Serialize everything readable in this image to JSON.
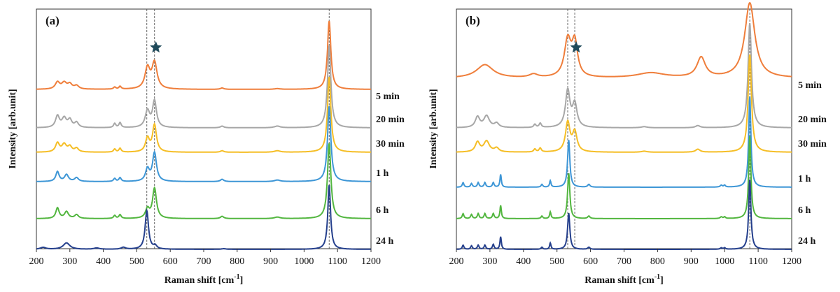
{
  "chart_data": [
    {
      "type": "line",
      "panel_label": "(a)",
      "xlabel_main": "Raman shift [cm",
      "xlabel_sup": "-1",
      "xlabel_end": "]",
      "ylabel": "Intensity [arb.unit]",
      "xlim": [
        200,
        1200
      ],
      "xticks": [
        200,
        300,
        400,
        500,
        600,
        700,
        800,
        900,
        1000,
        1100,
        1200
      ],
      "reference_lines": [
        530,
        553,
        1075
      ],
      "star_at": 553,
      "series": [
        {
          "name": "5 min",
          "color": "#ef7e3b",
          "peaks": [
            [
              263,
              0.1,
              8
            ],
            [
              283,
              0.09,
              9
            ],
            [
              300,
              0.07,
              8
            ],
            [
              320,
              0.05,
              8
            ],
            [
              434,
              0.03,
              4
            ],
            [
              450,
              0.04,
              4
            ],
            [
              532,
              0.3,
              9
            ],
            [
              553,
              0.38,
              9
            ],
            [
              755,
              0.02,
              6
            ],
            [
              920,
              0.01,
              10
            ],
            [
              1075,
              1.0,
              6
            ]
          ]
        },
        {
          "name": "20 min",
          "color": "#a7a7a7",
          "peaks": [
            [
              263,
              0.14,
              7
            ],
            [
              283,
              0.11,
              8
            ],
            [
              300,
              0.09,
              7
            ],
            [
              320,
              0.06,
              7
            ],
            [
              434,
              0.05,
              4
            ],
            [
              450,
              0.06,
              4
            ],
            [
              532,
              0.2,
              8
            ],
            [
              553,
              0.32,
              7
            ],
            [
              755,
              0.02,
              6
            ],
            [
              920,
              0.02,
              10
            ],
            [
              1075,
              1.0,
              6
            ]
          ]
        },
        {
          "name": "30 min",
          "color": "#f5be26",
          "peaks": [
            [
              263,
              0.12,
              7
            ],
            [
              283,
              0.1,
              8
            ],
            [
              300,
              0.07,
              7
            ],
            [
              320,
              0.05,
              7
            ],
            [
              434,
              0.04,
              4
            ],
            [
              450,
              0.05,
              4
            ],
            [
              532,
              0.18,
              7
            ],
            [
              553,
              0.36,
              7
            ],
            [
              755,
              0.02,
              6
            ],
            [
              920,
              0.02,
              10
            ],
            [
              1075,
              1.0,
              6
            ]
          ]
        },
        {
          "name": "1 h",
          "color": "#3d96d6",
          "peaks": [
            [
              263,
              0.13,
              6
            ],
            [
              290,
              0.09,
              7
            ],
            [
              320,
              0.05,
              7
            ],
            [
              434,
              0.04,
              4
            ],
            [
              450,
              0.05,
              4
            ],
            [
              532,
              0.16,
              7
            ],
            [
              553,
              0.38,
              7
            ],
            [
              755,
              0.03,
              6
            ],
            [
              920,
              0.02,
              10
            ],
            [
              1075,
              1.0,
              6
            ]
          ]
        },
        {
          "name": "6 h",
          "color": "#52b63f",
          "peaks": [
            [
              263,
              0.14,
              6
            ],
            [
              290,
              0.09,
              7
            ],
            [
              320,
              0.05,
              7
            ],
            [
              434,
              0.04,
              4
            ],
            [
              450,
              0.05,
              4
            ],
            [
              532,
              0.12,
              7
            ],
            [
              553,
              0.4,
              7
            ],
            [
              755,
              0.03,
              6
            ],
            [
              920,
              0.02,
              10
            ],
            [
              1075,
              1.0,
              6
            ]
          ]
        },
        {
          "name": "24 h",
          "color": "#243f8c",
          "peaks": [
            [
              220,
              0.03,
              10
            ],
            [
              290,
              0.1,
              12
            ],
            [
              380,
              0.02,
              10
            ],
            [
              460,
              0.03,
              8
            ],
            [
              530,
              0.6,
              6
            ],
            [
              555,
              0.05,
              6
            ],
            [
              760,
              0.01,
              8
            ],
            [
              1075,
              1.0,
              5
            ]
          ]
        }
      ]
    },
    {
      "type": "line",
      "panel_label": "(b)",
      "xlabel_main": "Raman shift [cm",
      "xlabel_sup": "-1",
      "xlabel_end": "]",
      "ylabel": "Intensity [arb.unit]",
      "xlim": [
        200,
        1200
      ],
      "xticks": [
        200,
        300,
        400,
        500,
        600,
        700,
        800,
        900,
        1000,
        1100,
        1200
      ],
      "reference_lines": [
        532,
        553,
        1075
      ],
      "star_at": 553,
      "series": [
        {
          "name": "5 min",
          "color": "#ef7e3b",
          "peaks": [
            [
              285,
              0.08,
              30
            ],
            [
              430,
              0.02,
              15
            ],
            [
              532,
              0.22,
              12
            ],
            [
              553,
              0.2,
              10
            ],
            [
              780,
              0.03,
              50
            ],
            [
              930,
              0.12,
              15
            ],
            [
              1075,
              0.45,
              18
            ]
          ]
        },
        {
          "name": "20 min",
          "color": "#a7a7a7",
          "peaks": [
            [
              263,
              0.1,
              8
            ],
            [
              290,
              0.11,
              10
            ],
            [
              320,
              0.04,
              8
            ],
            [
              434,
              0.03,
              4
            ],
            [
              450,
              0.04,
              4
            ],
            [
              532,
              0.35,
              8
            ],
            [
              553,
              0.22,
              8
            ],
            [
              760,
              0.01,
              10
            ],
            [
              920,
              0.02,
              8
            ],
            [
              1075,
              1.0,
              6
            ]
          ]
        },
        {
          "name": "30 min",
          "color": "#f5be26",
          "peaks": [
            [
              263,
              0.1,
              8
            ],
            [
              290,
              0.11,
              10
            ],
            [
              320,
              0.04,
              8
            ],
            [
              434,
              0.03,
              4
            ],
            [
              450,
              0.04,
              4
            ],
            [
              532,
              0.3,
              8
            ],
            [
              553,
              0.2,
              8
            ],
            [
              760,
              0.01,
              10
            ],
            [
              920,
              0.03,
              8
            ],
            [
              1075,
              1.0,
              6
            ]
          ]
        },
        {
          "name": "1 h",
          "color": "#3d96d6",
          "peaks": [
            [
              220,
              0.05,
              3
            ],
            [
              245,
              0.04,
              3
            ],
            [
              265,
              0.05,
              3
            ],
            [
              285,
              0.05,
              3
            ],
            [
              310,
              0.05,
              3
            ],
            [
              332,
              0.14,
              2.5
            ],
            [
              455,
              0.03,
              3
            ],
            [
              480,
              0.07,
              2.5
            ],
            [
              535,
              0.52,
              4
            ],
            [
              595,
              0.03,
              4
            ],
            [
              990,
              0.02,
              4
            ],
            [
              1000,
              0.02,
              3
            ],
            [
              1075,
              1.0,
              4
            ]
          ]
        },
        {
          "name": "6 h",
          "color": "#52b63f",
          "peaks": [
            [
              220,
              0.06,
              3
            ],
            [
              245,
              0.05,
              3
            ],
            [
              265,
              0.06,
              3
            ],
            [
              285,
              0.06,
              3
            ],
            [
              310,
              0.06,
              3
            ],
            [
              332,
              0.16,
              2.5
            ],
            [
              455,
              0.03,
              3
            ],
            [
              480,
              0.08,
              2.5
            ],
            [
              535,
              0.55,
              4
            ],
            [
              595,
              0.03,
              4
            ],
            [
              990,
              0.02,
              4
            ],
            [
              1000,
              0.02,
              3
            ],
            [
              1075,
              1.0,
              4
            ]
          ]
        },
        {
          "name": "24 h",
          "color": "#243f8c",
          "peaks": [
            [
              220,
              0.06,
              3
            ],
            [
              245,
              0.05,
              3
            ],
            [
              265,
              0.06,
              3
            ],
            [
              285,
              0.06,
              3
            ],
            [
              310,
              0.07,
              3
            ],
            [
              332,
              0.18,
              2.5
            ],
            [
              455,
              0.03,
              3
            ],
            [
              480,
              0.09,
              2.5
            ],
            [
              535,
              0.52,
              4
            ],
            [
              595,
              0.03,
              4
            ],
            [
              990,
              0.02,
              4
            ],
            [
              1000,
              0.02,
              3
            ],
            [
              1075,
              1.0,
              4
            ]
          ]
        }
      ]
    }
  ]
}
